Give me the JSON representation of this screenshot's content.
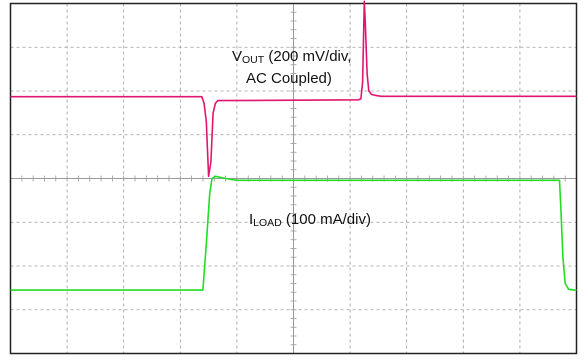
{
  "chart_data": {
    "type": "line",
    "title": "",
    "xlabel": "",
    "ylabel": "",
    "divisions": {
      "horizontal": 10,
      "vertical": 8
    },
    "grid": true,
    "colors": {
      "frame": "#222222",
      "grid": "#9a9a9a",
      "vout": "#e0156f",
      "iload": "#22dd22"
    },
    "series": [
      {
        "key": "vout",
        "note": "AC coupled output voltage; y in screen divisions (0 = bottom, 8 = top)",
        "x": [
          0,
          3.38,
          3.42,
          3.46,
          3.5,
          3.54,
          3.58,
          3.62,
          3.66,
          3.7,
          6.15,
          6.19,
          6.22,
          6.25,
          6.27,
          6.3,
          6.33,
          6.38,
          6.45,
          6.55,
          10
        ],
        "y": [
          5.87,
          5.87,
          5.72,
          5.3,
          4.05,
          4.38,
          5.5,
          5.72,
          5.78,
          5.78,
          5.8,
          5.82,
          6.2,
          8.05,
          7.5,
          6.4,
          6.0,
          5.92,
          5.9,
          5.88,
          5.88
        ]
      },
      {
        "key": "iload",
        "note": "load current; y in screen divisions (0 = bottom, 8 = top)",
        "x": [
          0,
          3.4,
          3.46,
          3.52,
          3.56,
          3.62,
          3.8,
          4.0,
          9.7,
          9.72,
          9.76,
          9.8,
          9.86,
          9.95,
          10
        ],
        "y": [
          1.45,
          1.45,
          2.5,
          3.65,
          4.0,
          4.05,
          4.0,
          3.96,
          3.96,
          3.4,
          2.2,
          1.6,
          1.47,
          1.45,
          1.45
        ]
      }
    ],
    "annotations": {
      "vout": {
        "main": "V",
        "sub": "OUT",
        "rest": " (200 mV/div,",
        "line2": "AC Coupled)"
      },
      "iload": {
        "main": "I",
        "sub": "LOAD",
        "rest": " (100 mA/div)"
      }
    }
  }
}
